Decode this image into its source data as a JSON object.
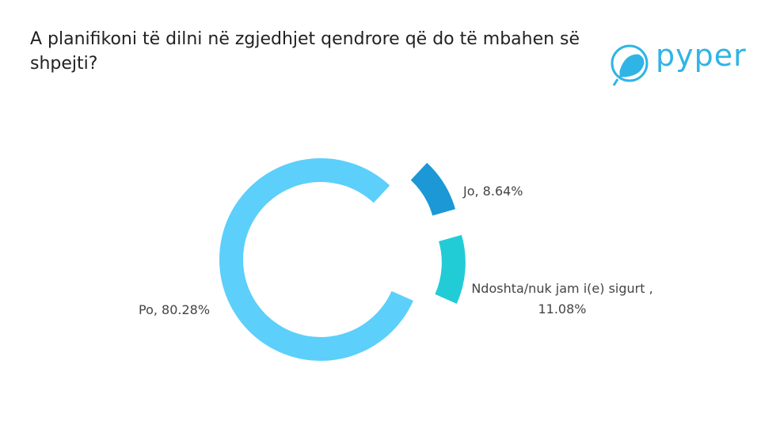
{
  "header": {
    "logo": "pyper"
  },
  "chart_data": {
    "type": "pie",
    "donut": true,
    "title": "A planifikoni të dilni në zgjedhjet qendrore që do të mbahen së shpejti?",
    "categories": [
      "Po",
      "Jo",
      "Ndoshta/nuk jam i(e) sigurt"
    ],
    "values": [
      80.28,
      8.64,
      11.08
    ],
    "value_labels": [
      "Po, 80.28%",
      "Jo, 8.64%",
      "Ndoshta/nuk jam i(e) sigurt , 11.08%"
    ],
    "colors": [
      "#5ccffb",
      "#1b98d5",
      "#22ccd6"
    ]
  }
}
